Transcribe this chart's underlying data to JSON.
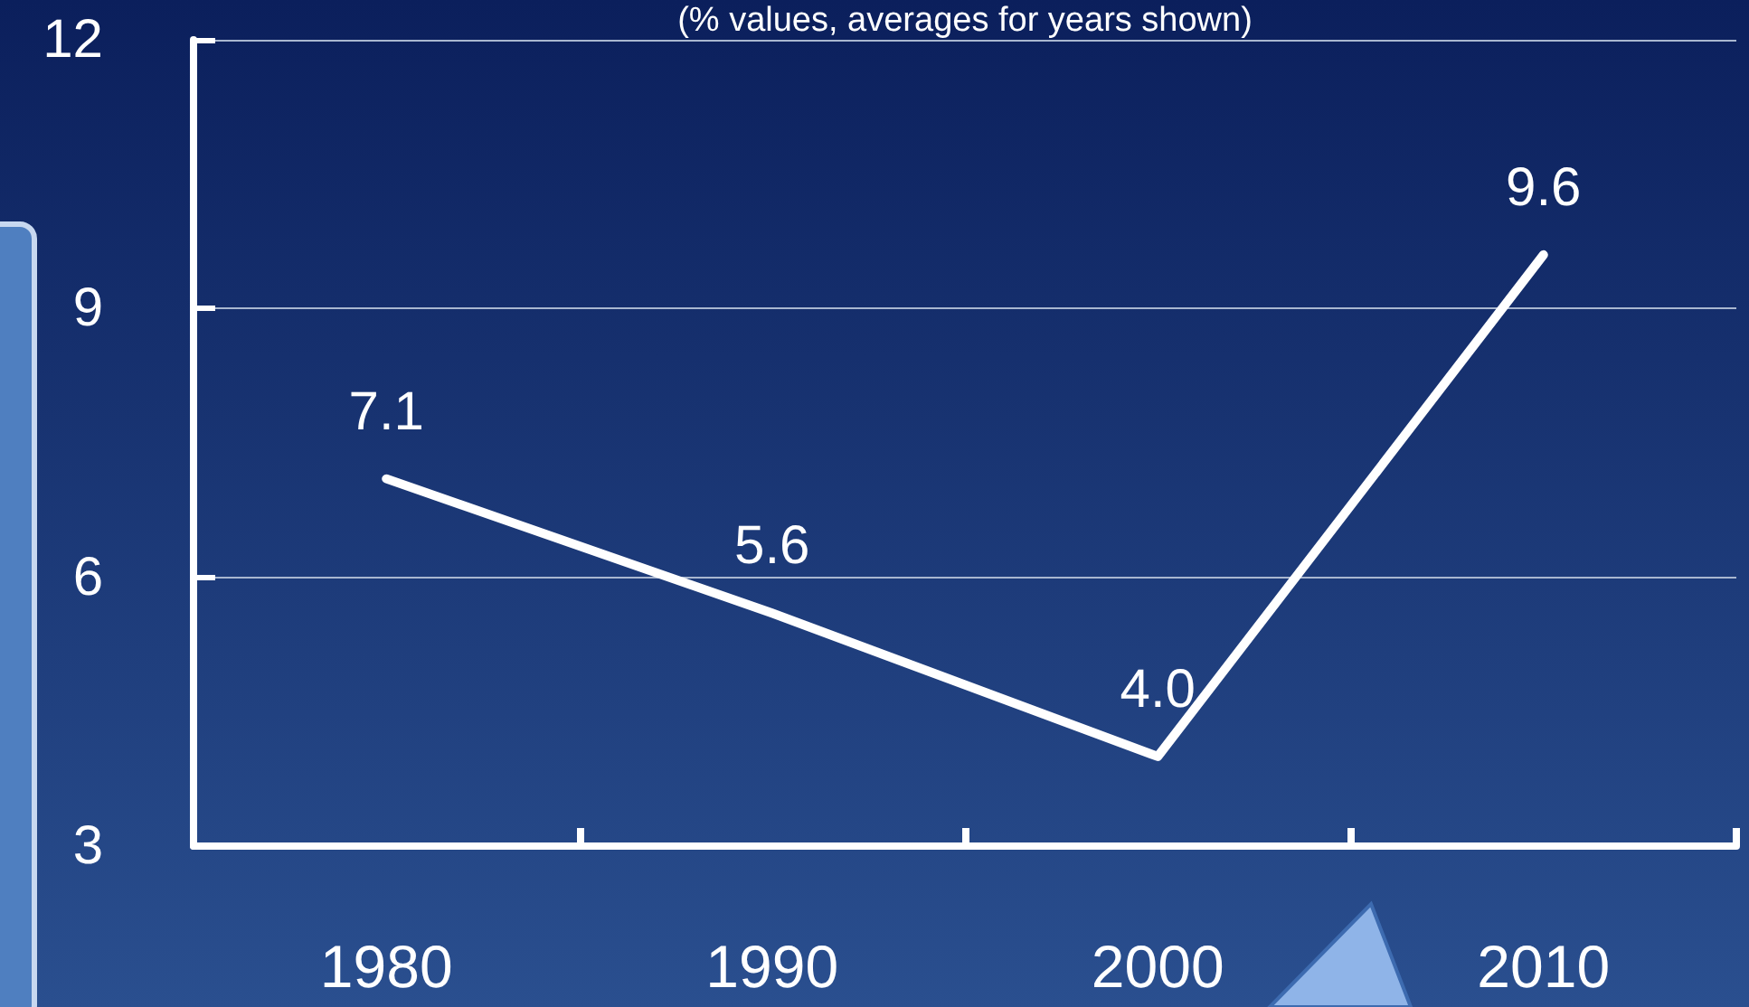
{
  "chart_data": {
    "type": "line",
    "subtitle": "(% values, averages for years shown)",
    "categories": [
      "1980",
      "1990",
      "2000",
      "2010"
    ],
    "series": [
      {
        "color": "#ffffff",
        "values": [
          7.1,
          5.6,
          4.0,
          9.6
        ],
        "value_labels": [
          "7.1",
          "5.6",
          "4.0",
          "9.6"
        ]
      }
    ],
    "ylim": [
      3,
      12
    ],
    "yticks": [
      3,
      6,
      9,
      12
    ],
    "grid": "y",
    "marker": "none",
    "line_style": "solid"
  }
}
